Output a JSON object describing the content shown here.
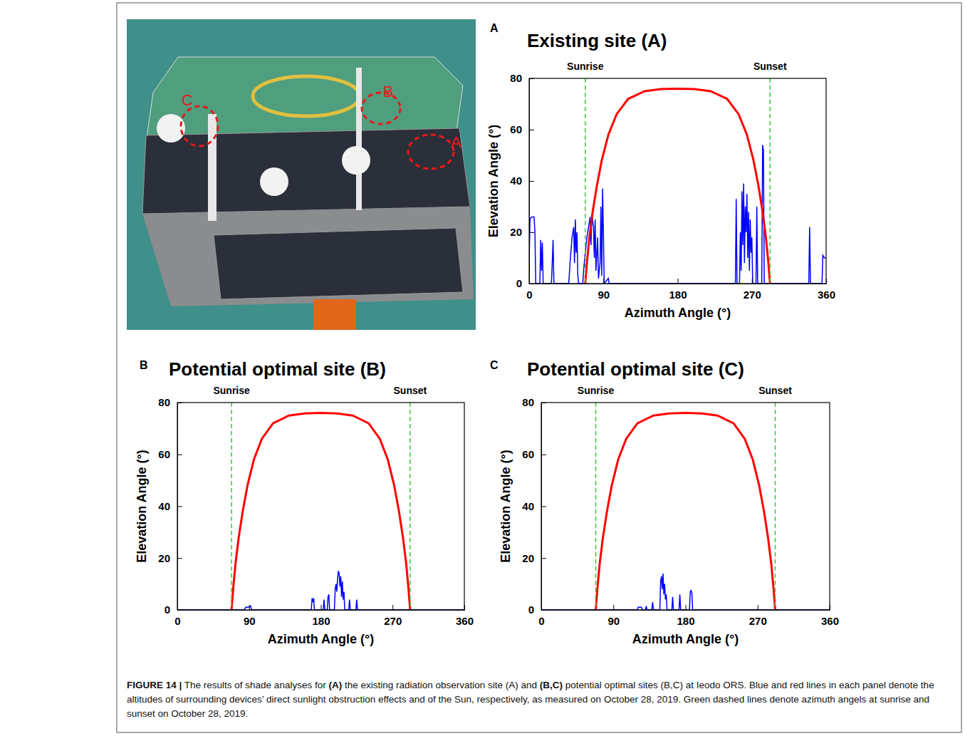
{
  "chart_data": [
    {
      "type": "line",
      "panel": "A",
      "title": "Existing site (A)",
      "x_label": "Azimuth Angle (°)",
      "y_label": "Elevation Angle (°)",
      "xlim": [
        0,
        360
      ],
      "xticks": [
        0,
        90,
        180,
        270,
        360
      ],
      "ylim": [
        0,
        80
      ],
      "yticks": [
        0,
        20,
        40,
        60,
        80
      ],
      "grid": false,
      "annotations": [
        {
          "x": 68,
          "label": "Sunrise"
        },
        {
          "x": 292,
          "label": "Sunset"
        }
      ],
      "series": [
        {
          "color": "#0000ff",
          "x": [
            0,
            1,
            3,
            6,
            7,
            8,
            13,
            14,
            15,
            16,
            17,
            27,
            28,
            29,
            30,
            48,
            50,
            52,
            54,
            55,
            56,
            57,
            58,
            59,
            60,
            65,
            66,
            68,
            70,
            72,
            74,
            75,
            76,
            78,
            79,
            80,
            81,
            83,
            84,
            86,
            87,
            88,
            89,
            90,
            91,
            96,
            97,
            250,
            251,
            252,
            255,
            256,
            257,
            258,
            259,
            260,
            261,
            262,
            263,
            264,
            265,
            266,
            267,
            268,
            269,
            270,
            271,
            275,
            276,
            277,
            282,
            283,
            284,
            285,
            339,
            340,
            341,
            355,
            356,
            358,
            360
          ],
          "values": [
            9,
            25,
            26,
            26,
            20,
            0,
            0,
            17,
            5,
            16,
            0,
            0,
            8,
            17,
            0,
            0,
            10,
            18,
            22,
            8,
            25,
            12,
            20,
            3,
            0,
            0,
            5,
            12,
            18,
            22,
            26,
            15,
            27,
            22,
            10,
            25,
            5,
            18,
            2,
            8,
            30,
            3,
            37,
            20,
            0,
            2,
            0,
            0,
            33,
            0,
            0,
            20,
            5,
            36,
            15,
            39,
            8,
            30,
            20,
            35,
            10,
            28,
            5,
            25,
            12,
            18,
            0,
            0,
            30,
            0,
            0,
            54,
            52,
            0,
            0,
            22,
            0,
            0,
            11,
            10,
            10
          ]
        },
        {
          "color": "#ff0000",
          "x": [
            68,
            70,
            73,
            77,
            82,
            88,
            96,
            106,
            120,
            140,
            160,
            180,
            200,
            220,
            240,
            254,
            264,
            272,
            278,
            283,
            287,
            290,
            292
          ],
          "values": [
            0,
            8,
            18,
            28,
            38,
            48,
            58,
            66,
            72,
            75,
            75.8,
            76,
            75.8,
            75,
            72,
            66,
            58,
            48,
            38,
            28,
            18,
            8,
            0
          ]
        }
      ]
    },
    {
      "type": "line",
      "panel": "B",
      "title": "Potential optimal site (B)",
      "x_label": "Azimuth Angle (°)",
      "y_label": "Elevation Angle (°)",
      "xlim": [
        0,
        360
      ],
      "xticks": [
        0,
        90,
        180,
        270,
        360
      ],
      "ylim": [
        0,
        80
      ],
      "yticks": [
        0,
        20,
        40,
        60,
        80
      ],
      "grid": false,
      "annotations": [
        {
          "x": 68,
          "label": "Sunrise"
        },
        {
          "x": 292,
          "label": "Sunset"
        }
      ],
      "series": [
        {
          "color": "#0000ff",
          "x": [
            0,
            84,
            86,
            89,
            92,
            93,
            168,
            169,
            170,
            171,
            172,
            183,
            184,
            185,
            188,
            189,
            190,
            191,
            197,
            198,
            199,
            200,
            201,
            202,
            203,
            204,
            205,
            206,
            207,
            208,
            209,
            210,
            215,
            216,
            217,
            224,
            225,
            226,
            360
          ],
          "values": [
            0,
            0,
            1,
            1,
            1.5,
            0,
            0,
            4.5,
            3,
            4.5,
            0,
            0,
            4,
            0,
            0,
            5,
            6,
            0,
            0,
            8,
            10,
            7,
            12,
            15,
            14,
            9,
            13,
            5,
            11,
            4,
            7,
            0,
            0,
            4,
            0,
            0,
            4,
            0,
            0
          ]
        },
        {
          "color": "#ff0000",
          "x": [
            68,
            70,
            73,
            77,
            82,
            88,
            96,
            106,
            120,
            140,
            160,
            180,
            200,
            220,
            240,
            254,
            264,
            272,
            278,
            283,
            287,
            290,
            292
          ],
          "values": [
            0,
            8,
            18,
            28,
            38,
            48,
            58,
            66,
            72,
            75,
            75.8,
            76,
            75.8,
            75,
            72,
            66,
            58,
            48,
            38,
            28,
            18,
            8,
            0
          ]
        }
      ]
    },
    {
      "type": "line",
      "panel": "C",
      "title": "Potential optimal site (C)",
      "x_label": "Azimuth Angle (°)",
      "y_label": "Elevation Angle (°)",
      "xlim": [
        0,
        360
      ],
      "xticks": [
        0,
        90,
        180,
        270,
        360
      ],
      "ylim": [
        0,
        80
      ],
      "yticks": [
        0,
        20,
        40,
        60,
        80
      ],
      "grid": false,
      "annotations": [
        {
          "x": 68,
          "label": "Sunrise"
        },
        {
          "x": 292,
          "label": "Sunset"
        }
      ],
      "series": [
        {
          "color": "#0000ff",
          "x": [
            0,
            120,
            121,
            125,
            126,
            130,
            131,
            132,
            138,
            139,
            140,
            148,
            149,
            150,
            151,
            152,
            153,
            154,
            155,
            156,
            157,
            163,
            164,
            165,
            172,
            173,
            174,
            185,
            186,
            187,
            188,
            189,
            360
          ],
          "values": [
            0,
            0,
            1,
            1,
            0,
            0,
            1.5,
            0,
            0,
            3,
            0,
            0,
            11,
            13,
            8,
            14,
            6,
            10,
            4,
            6,
            0,
            0,
            5,
            0,
            0,
            6,
            0,
            0,
            7,
            7.5,
            6.5,
            0,
            0
          ]
        },
        {
          "color": "#ff0000",
          "x": [
            68,
            70,
            73,
            77,
            82,
            88,
            96,
            106,
            120,
            140,
            160,
            180,
            200,
            220,
            240,
            254,
            264,
            272,
            278,
            283,
            287,
            290,
            292
          ],
          "values": [
            0,
            8,
            18,
            28,
            38,
            48,
            58,
            66,
            72,
            75,
            75.8,
            76,
            75.8,
            75,
            72,
            66,
            58,
            48,
            38,
            28,
            18,
            8,
            0
          ]
        }
      ]
    }
  ],
  "photo": {
    "labels": [
      "C",
      "B",
      "A"
    ]
  },
  "caption": {
    "parts": [
      "FIGURE 14 |",
      " The results of shade analyses for ",
      "(A)",
      " the existing radiation observation site (A) and ",
      "(B,C)",
      " potential optimal sites (B,C) at Ieodo ORS. Blue and red lines in each panel denote the altitudes of surrounding devices’ direct sunlight obstruction effects and of the Sun, respectively, as measured on October 28, 2019. Green dashed lines denote azimuth angels at sunrise and sunset on October 28, 2019."
    ]
  }
}
